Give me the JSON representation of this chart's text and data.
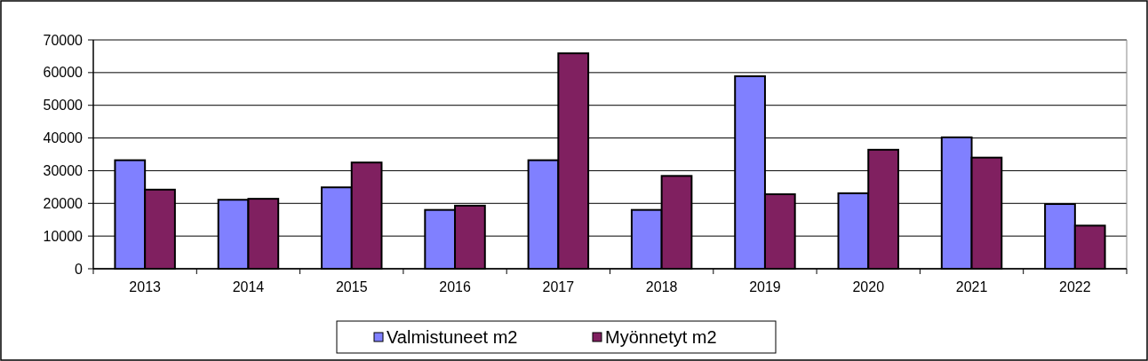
{
  "chart_data": {
    "type": "bar",
    "categories": [
      "2013",
      "2014",
      "2015",
      "2016",
      "2017",
      "2018",
      "2019",
      "2020",
      "2021",
      "2022"
    ],
    "series": [
      {
        "name": "Valmistuneet m2",
        "color": "#8080ff",
        "values": [
          33200,
          21100,
          24900,
          18000,
          33200,
          18000,
          58900,
          23100,
          40200,
          19800
        ]
      },
      {
        "name": "Myönnetyt m2",
        "color": "#802060",
        "values": [
          24200,
          21400,
          32500,
          19300,
          65900,
          28400,
          22800,
          36400,
          34000,
          13200
        ]
      }
    ],
    "ylim": [
      0,
      70000
    ],
    "yticks": [
      0,
      10000,
      20000,
      30000,
      40000,
      50000,
      60000,
      70000
    ],
    "grid": "y",
    "legend": "bottom"
  }
}
